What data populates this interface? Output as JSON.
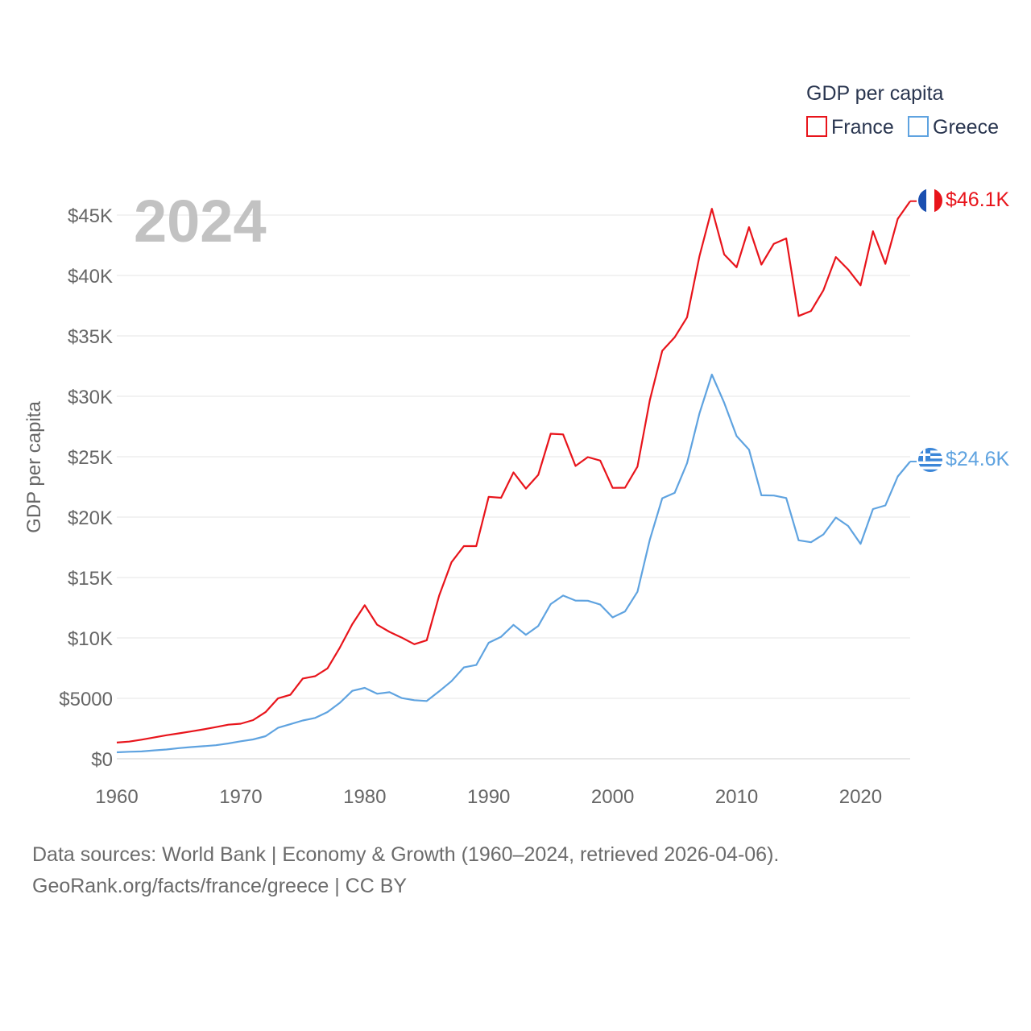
{
  "chart_data": {
    "type": "line",
    "title": "GDP per capita",
    "year_label": "2024",
    "ylabel": "GDP per capita",
    "xlim": [
      1960,
      2024
    ],
    "ylim": [
      0,
      46000
    ],
    "x_ticks": [
      1960,
      1970,
      1980,
      1990,
      2000,
      2010,
      2020
    ],
    "x_tick_labels": [
      "1960",
      "1970",
      "1980",
      "1990",
      "2000",
      "2010",
      "2020"
    ],
    "y_ticks": [
      0,
      5000,
      10000,
      15000,
      20000,
      25000,
      30000,
      35000,
      40000,
      45000
    ],
    "y_tick_labels": [
      "$0",
      "$5000",
      "$10K",
      "$15K",
      "$20K",
      "$25K",
      "$30K",
      "$35K",
      "$40K",
      "$45K"
    ],
    "grid": true,
    "legend": {
      "title": "GDP per capita",
      "placement": "top-right",
      "entries": [
        "France",
        "Greece"
      ]
    },
    "x": [
      1960,
      1961,
      1962,
      1963,
      1964,
      1965,
      1966,
      1967,
      1968,
      1969,
      1970,
      1971,
      1972,
      1973,
      1974,
      1975,
      1976,
      1977,
      1978,
      1979,
      1980,
      1981,
      1982,
      1983,
      1984,
      1985,
      1986,
      1987,
      1988,
      1989,
      1990,
      1991,
      1992,
      1993,
      1994,
      1995,
      1996,
      1997,
      1998,
      1999,
      2000,
      2001,
      2002,
      2003,
      2004,
      2005,
      2006,
      2007,
      2008,
      2009,
      2010,
      2011,
      2012,
      2013,
      2014,
      2015,
      2016,
      2017,
      2018,
      2019,
      2020,
      2021,
      2022,
      2023,
      2024
    ],
    "series": [
      {
        "name": "France",
        "color": "#e8141b",
        "end_label": "$46.1K",
        "flag": "france",
        "values": [
          1340,
          1420,
          1580,
          1760,
          1950,
          2100,
          2260,
          2430,
          2620,
          2820,
          2900,
          3200,
          3860,
          4990,
          5290,
          6640,
          6830,
          7480,
          9210,
          11140,
          12710,
          11090,
          10500,
          10020,
          9480,
          9810,
          13500,
          16260,
          17600,
          17600,
          21680,
          21600,
          23700,
          22360,
          23500,
          26900,
          26850,
          24230,
          24970,
          24680,
          22420,
          22430,
          24180,
          29690,
          33770,
          34880,
          36540,
          41600,
          45520,
          41740,
          40680,
          44000,
          40900,
          42620,
          43070,
          36650,
          37060,
          38780,
          41530,
          40490,
          39180,
          43660,
          40960,
          44690,
          46150
        ]
      },
      {
        "name": "Greece",
        "color": "#5fa3e0",
        "end_label": "$24.6K",
        "flag": "greece",
        "values": [
          530,
          580,
          610,
          690,
          770,
          880,
          970,
          1040,
          1120,
          1270,
          1450,
          1600,
          1870,
          2560,
          2860,
          3170,
          3380,
          3870,
          4630,
          5620,
          5870,
          5380,
          5510,
          5020,
          4850,
          4780,
          5580,
          6420,
          7560,
          7760,
          9600,
          10090,
          11080,
          10260,
          10990,
          12800,
          13510,
          13090,
          13080,
          12760,
          11700,
          12190,
          13820,
          18140,
          21560,
          22010,
          24470,
          28590,
          31800,
          29460,
          26710,
          25590,
          21810,
          21790,
          21580,
          18080,
          17920,
          18570,
          19970,
          19270,
          17790,
          20670,
          20970,
          23370,
          24600
        ]
      }
    ]
  },
  "sources": {
    "line1": "Data sources: World Bank | Economy & Growth (1960–2024, retrieved 2026-04-06).",
    "line2": "GeoRank.org/facts/france/greece | CC BY"
  }
}
